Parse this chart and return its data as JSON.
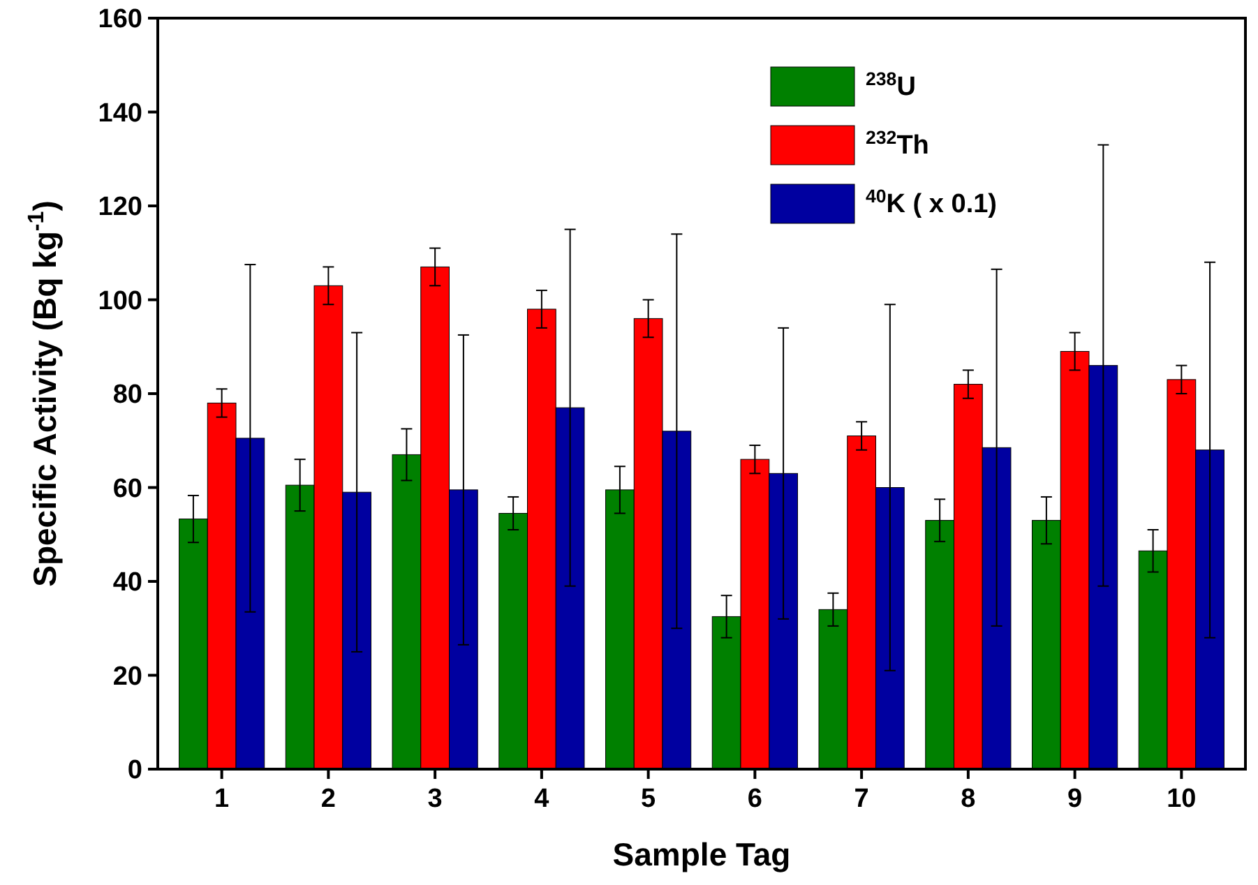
{
  "chart_data": {
    "type": "bar",
    "xlabel": "Sample Tag",
    "ylabel": "Specific Activity (Bq kg$^{-1}$)",
    "categories": [
      "1",
      "2",
      "3",
      "4",
      "5",
      "6",
      "7",
      "8",
      "9",
      "10"
    ],
    "series": [
      {
        "name": "$^{238}$U",
        "color": "#008000",
        "values": [
          53.3,
          60.5,
          67,
          54.5,
          59.5,
          32.5,
          34,
          53,
          53,
          46.5
        ],
        "errors": [
          5,
          5.5,
          5.5,
          3.5,
          5,
          4.5,
          3.5,
          4.5,
          5,
          4.5
        ]
      },
      {
        "name": "$^{232}$Th",
        "color": "#ff0000",
        "values": [
          78,
          103,
          107,
          98,
          96,
          66,
          71,
          82,
          89,
          83
        ],
        "errors": [
          3,
          4,
          4,
          4,
          4,
          3,
          3,
          3,
          4,
          3
        ]
      },
      {
        "name": "$^{40}$K ( x 0.1)",
        "color": "#0000a0",
        "values": [
          70.5,
          59,
          59.5,
          77,
          72,
          63,
          60,
          68.5,
          86,
          68
        ],
        "errors": [
          37,
          34,
          33,
          38,
          42,
          31,
          39,
          38,
          47,
          40
        ]
      }
    ],
    "ylim": [
      0,
      160
    ],
    "yticks": [
      0,
      20,
      40,
      60,
      80,
      100,
      120,
      140,
      160
    ],
    "grid": false,
    "legend": "top right"
  }
}
